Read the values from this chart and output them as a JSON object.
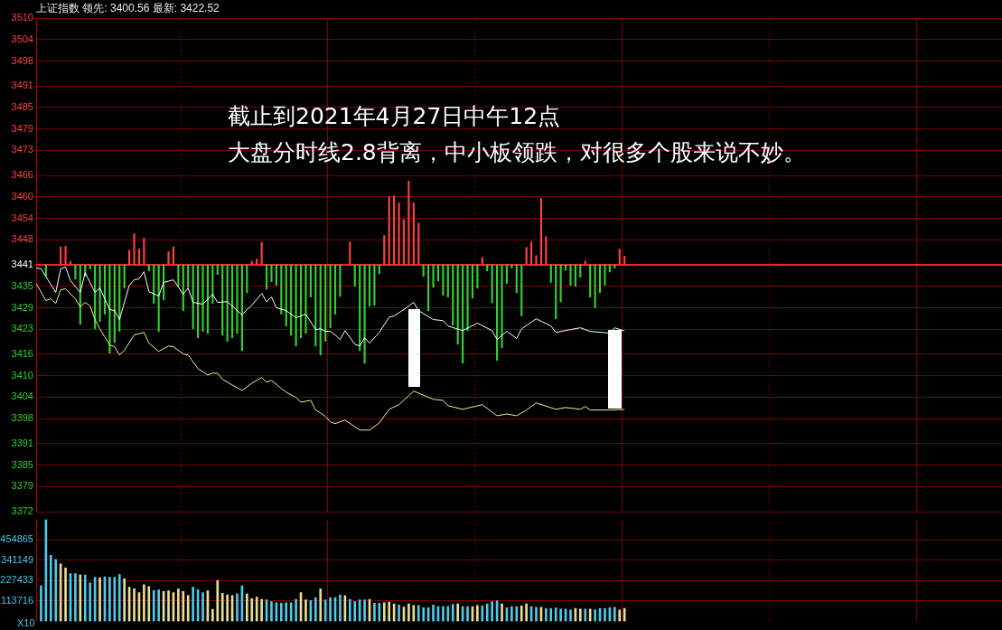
{
  "chart_data": [
    {
      "type": "line",
      "title": "上证指数 领先: 3400.56 最新: 3422.52",
      "annotations": [
        "截止到2021年4月27日中午12点",
        "大盘分时线2.8背离，中小板领跌，对很多个股来说不妙。"
      ],
      "categories": [
        null,
        null,
        null,
        null,
        null,
        null,
        null,
        null,
        null,
        null,
        null,
        null,
        null,
        null,
        null,
        null,
        null,
        null,
        null,
        null,
        null,
        null,
        null,
        null,
        null,
        null,
        null,
        null,
        null,
        null,
        null,
        null,
        null,
        null,
        null,
        null,
        null,
        null,
        null,
        null,
        null,
        null,
        null,
        null,
        null,
        null,
        null,
        null,
        null,
        null,
        null,
        null,
        null,
        null,
        null,
        null,
        null,
        null,
        null,
        null,
        null,
        null,
        null,
        null,
        null,
        null,
        null,
        null,
        null,
        null,
        null,
        null,
        null,
        null,
        null,
        null,
        null,
        null,
        null,
        null,
        null,
        null,
        null,
        null,
        null,
        null,
        null,
        null,
        null,
        null,
        null,
        null,
        null,
        null,
        null,
        null,
        null,
        null,
        null,
        null,
        null,
        null,
        null,
        null,
        null,
        null,
        null,
        null,
        null,
        null,
        null,
        null,
        null,
        null,
        null,
        null,
        null,
        null,
        null,
        null,
        null,
        null,
        null,
        null,
        null,
        null,
        null,
        null,
        null,
        null,
        null,
        null,
        null,
        null,
        null,
        null,
        null,
        null,
        null,
        null,
        null,
        null,
        null,
        null,
        null,
        null,
        null,
        null,
        null,
        null,
        null,
        null,
        null,
        null,
        null,
        null,
        null,
        null,
        null,
        null,
        null,
        null,
        null,
        null,
        null,
        null,
        null,
        null,
        null,
        null,
        null,
        null,
        null,
        null,
        null,
        null,
        null,
        null,
        null,
        null,
        null,
        null,
        null,
        null,
        null,
        null,
        null,
        null,
        null,
        null,
        null,
        null,
        null,
        null,
        null,
        null,
        null,
        null
      ],
      "ylim": [
        3372,
        3510
      ],
      "yticks": [
        3372,
        3379,
        3385,
        3391,
        3398,
        3404,
        3410,
        3416,
        3423,
        3429,
        3435,
        3441,
        3448,
        3454,
        3460,
        3466,
        3473,
        3479,
        3485,
        3491,
        3498,
        3504,
        3510
      ],
      "tick_labels": "y",
      "grid": true,
      "ref_lines": [
        {
          "axis": "y",
          "value": 3441,
          "color": "#ff2020"
        }
      ],
      "series": [
        {
          "type": "bar",
          "values": [
            null,
            null,
            -3.2,
            null,
            null,
            5.0,
            5.2,
            1.0,
            -4.0,
            -16.6,
            -3.2,
            -1.2,
            -17.9,
            -15.9,
            -13.8,
            -24.7,
            -21.7,
            -18.6,
            -6.5,
            4.1,
            8.7,
            4.4,
            7.5,
            -1.7,
            -10.8,
            -18.6,
            -9.8,
            3.7,
            5.0,
            -6.0,
            -12.8,
            -6.3,
            -17.9,
            -20.4,
            -18.6,
            -19.2,
            -10.8,
            -2.7,
            -19.7,
            -21.4,
            -20.4,
            -19.2,
            -24.0,
            -7.8,
            1.0,
            1.6,
            6.3,
            -6.8,
            -4.7,
            -5.7,
            -13.8,
            -17.1,
            -19.7,
            -22.7,
            -20.4,
            -19.2,
            -9.0,
            -22.7,
            -25.2,
            -21.4,
            -17.6,
            -13.8,
            -8.8,
            null,
            6.4,
            -6.0,
            -24.0,
            -27.5,
            -11.6,
            -11.3,
            -2.5,
            8.2,
            19.1,
            19.3,
            17.3,
            12.7,
            23.4,
            17.3,
            11.7,
            -3.2,
            -12.8,
            -6.3,
            -4.5,
            -8.5,
            -9.0,
            -16.9,
            -22.2,
            -27.5,
            -18.4,
            -9.3,
            -6.5,
            2.1,
            -1.7,
            -10.6,
            -26.7,
            -23.2,
            -5.2,
            -0.9,
            -7.8,
            -14.3,
            4.9,
            6.4,
            2.6,
            18.6,
            7.9,
            -4.9,
            -15.1,
            -10.3,
            -1.5,
            -5.7,
            -6.0,
            -3.5,
            1.1,
            -9.0,
            -12.0,
            -7.8,
            -5.7,
            -2.0,
            -0.9,
            4.4,
            2.4,
            null,
            null,
            null,
            null,
            null,
            null,
            null,
            null,
            null,
            null,
            null,
            null,
            null,
            null,
            null,
            null,
            null,
            null,
            null,
            null,
            null,
            null,
            null,
            null,
            null,
            null,
            null,
            null,
            null,
            null,
            null,
            null,
            null,
            null,
            null,
            null,
            null,
            null,
            null,
            null,
            null,
            null,
            null,
            null,
            null,
            null,
            null,
            null,
            null,
            null,
            null,
            null,
            null,
            null,
            null,
            null,
            null,
            null,
            null,
            null,
            null,
            null,
            null,
            null,
            null,
            null,
            null,
            null,
            null,
            null,
            null,
            null,
            null,
            null,
            null,
            null,
            null
          ],
          "colors": [
            null,
            null,
            "#30d030",
            null,
            null,
            "#ff4040",
            "#ff4040",
            "#ff4040",
            "#30d030",
            "#30d030",
            "#30d030",
            "#30d030",
            "#30d030",
            "#30d030",
            "#30d030",
            "#30d030",
            "#30d030",
            "#30d030",
            "#30d030",
            "#ff4040",
            "#ff4040",
            "#ff4040",
            "#ff4040",
            "#30d030",
            "#30d030",
            "#30d030",
            "#30d030",
            "#ff4040",
            "#ff4040",
            "#30d030",
            "#30d030",
            "#30d030",
            "#30d030",
            "#30d030",
            "#30d030",
            "#30d030",
            "#30d030",
            "#30d030",
            "#30d030",
            "#30d030",
            "#30d030",
            "#30d030",
            "#30d030",
            "#30d030",
            "#ff4040",
            "#ff4040",
            "#ff4040",
            "#30d030",
            "#30d030",
            "#30d030",
            "#30d030",
            "#30d030",
            "#30d030",
            "#30d030",
            "#30d030",
            "#30d030",
            "#30d030",
            "#30d030",
            "#30d030",
            "#30d030",
            "#30d030",
            "#30d030",
            "#30d030",
            null,
            "#ff4040",
            "#30d030",
            "#30d030",
            "#30d030",
            "#30d030",
            "#30d030",
            "#30d030",
            "#ff4040",
            "#ff4040",
            "#ff4040",
            "#ff4040",
            "#ff4040",
            "#ff4040",
            "#ff4040",
            "#ff4040",
            "#30d030",
            "#30d030",
            "#30d030",
            "#30d030",
            "#30d030",
            "#30d030",
            "#30d030",
            "#30d030",
            "#30d030",
            "#30d030",
            "#30d030",
            "#30d030",
            "#ff4040",
            "#30d030",
            "#30d030",
            "#30d030",
            "#30d030",
            "#30d030",
            "#30d030",
            "#30d030",
            "#30d030",
            "#ff4040",
            "#ff4040",
            "#ff4040",
            "#ff4040",
            "#ff4040",
            "#30d030",
            "#30d030",
            "#30d030",
            "#30d030",
            "#30d030",
            "#30d030",
            "#30d030",
            "#ff4040",
            "#30d030",
            "#30d030",
            "#30d030",
            "#30d030",
            "#30d030",
            "#30d030",
            "#ff4040",
            "#ff4040",
            null,
            null,
            null,
            null,
            null,
            null,
            null,
            null,
            null,
            null,
            null,
            null,
            null,
            null,
            null,
            null,
            null,
            null,
            null,
            null,
            null,
            null,
            null,
            null,
            null,
            null,
            null,
            null,
            null,
            null,
            null,
            null,
            null,
            null,
            null,
            null,
            null,
            null,
            null,
            null,
            null,
            null,
            null,
            null,
            null,
            null,
            null,
            null,
            null,
            null,
            null,
            null,
            null,
            null,
            null,
            null,
            null,
            null,
            null,
            null,
            null,
            null,
            null,
            null,
            null,
            null,
            null,
            null,
            null,
            null,
            null,
            null,
            null,
            null,
            null,
            null,
            null
          ],
          "base": [
            null,
            null,
            3441,
            null,
            null,
            3441,
            3441,
            3441,
            3441,
            3441,
            3441,
            3441,
            3441,
            3441,
            3441,
            3441,
            3441,
            3441,
            3441,
            3441,
            3441,
            3441,
            3441,
            3441,
            3441,
            3441,
            3441,
            3441,
            3441,
            3441,
            3441,
            3441,
            3441,
            3441,
            3441,
            3441,
            3441,
            3441,
            3441,
            3441,
            3441,
            3441,
            3441,
            3441,
            3441,
            3441,
            3441,
            3441,
            3441,
            3441,
            3441,
            3441,
            3441,
            3441,
            3441,
            3441,
            3441,
            3441,
            3441,
            3441,
            3441,
            3441,
            3441,
            null,
            3441,
            3441,
            3441,
            3441,
            3441,
            3441,
            3441,
            3441,
            3441,
            3441,
            3441,
            3441,
            3441,
            3441,
            3441,
            3441,
            3441,
            3441,
            3441,
            3441,
            3441,
            3441,
            3441,
            3441,
            3441,
            3441,
            3441,
            3441,
            3441,
            3441,
            3441,
            3441,
            3441,
            3441,
            3441,
            3441,
            3441,
            3441,
            3441,
            3441,
            3441,
            3441,
            3441,
            3441,
            3441,
            3441,
            3441,
            3441,
            3441,
            3441,
            3441,
            3441,
            3441,
            3441,
            3441,
            3441,
            3441,
            null,
            null,
            null,
            null,
            null,
            null,
            null,
            null,
            null,
            null,
            null,
            null,
            null,
            null,
            null,
            null,
            null,
            null,
            null,
            null,
            null,
            null,
            null,
            null,
            null,
            null,
            null,
            null,
            null,
            null,
            null,
            null,
            null,
            null,
            null,
            null,
            null,
            null,
            null,
            null,
            null,
            null,
            null,
            null,
            null,
            null,
            null,
            null,
            null,
            null,
            null,
            null,
            null,
            null,
            null,
            null,
            null,
            null,
            null,
            null,
            null,
            null,
            null,
            null,
            null,
            null,
            null,
            null,
            null,
            null,
            null,
            null,
            null,
            null,
            null,
            null,
            null
          ]
        },
        {
          "type": "line",
          "color": "#ffffff",
          "values": [
            3440.1,
            3439.9,
            null,
            null,
            3433.3,
            3439.9,
            3440.4,
            3436.6,
            null,
            3433.3,
            3438.8,
            null,
            3433.3,
            3434.5,
            null,
            3428.5,
            3428.2,
            3425.7,
            null,
            3435.3,
            3436.8,
            3437.1,
            3439.1,
            3433.5,
            null,
            3432.3,
            3436.1,
            null,
            3436.8,
            null,
            3432.8,
            3434.5,
            3430.5,
            null,
            3430.0,
            null,
            3432.8,
            3430.5,
            null,
            3430.7,
            null,
            null,
            3427.0,
            3428.5,
            3429.7,
            null,
            3433.0,
            3430.7,
            3432.0,
            3429.0,
            null,
            3428.2,
            null,
            3426.2,
            3426.7,
            3427.2,
            null,
            3422.9,
            3423.1,
            3422.4,
            3422.4,
            3421.4,
            3420.1,
            3422.6,
            null,
            3418.8,
            3418.3,
            3420.6,
            3419.1,
            null,
            3422.1,
            null,
            3426.4,
            3426.7,
            null,
            3428.5,
            null,
            3430.5,
            3428.2,
            null,
            null,
            3425.7,
            null,
            3425.4,
            3423.9,
            null,
            null,
            3422.6,
            null,
            null,
            3424.7,
            null,
            null,
            3422.6,
            3420.1,
            null,
            3422.4,
            null,
            3420.4,
            3423.1,
            null,
            null,
            3425.9,
            null,
            null,
            3423.9,
            3422.1,
            null,
            null,
            3422.9,
            null,
            3423.4,
            null,
            3422.4,
            null,
            null,
            null,
            3421.9,
            3423.4,
            null,
            3422.52,
            null,
            null,
            null,
            null,
            null,
            null,
            null,
            null,
            null,
            null,
            null,
            null,
            null,
            null,
            null,
            null,
            null,
            null,
            null,
            null,
            null,
            null,
            null,
            null,
            null,
            null,
            null,
            null,
            null,
            null,
            null,
            null,
            null,
            null,
            null,
            null,
            null,
            null,
            null,
            null,
            null,
            null,
            null,
            null,
            null,
            null,
            null,
            null,
            null,
            null,
            null,
            null,
            null,
            null,
            null,
            null,
            null,
            null,
            null,
            null,
            null,
            null,
            null,
            null,
            null,
            null,
            null,
            null,
            null,
            null,
            null,
            null,
            null,
            null,
            null,
            null,
            null
          ]
        },
        {
          "type": "line",
          "color": "#f0f0a0",
          "values": [
            3435.8,
            null,
            3431.0,
            3431.5,
            3430.2,
            3434.0,
            3434.3,
            null,
            3431.5,
            3429.2,
            3430.5,
            3429.5,
            3425.7,
            3423.1,
            null,
            3418.6,
            3418.1,
            3415.8,
            3417.1,
            null,
            3421.4,
            null,
            3422.1,
            3419.1,
            null,
            3416.8,
            null,
            3418.3,
            3418.1,
            null,
            3416.1,
            3415.8,
            null,
            3412.0,
            null,
            3410.2,
            3410.7,
            3410.7,
            3409.0,
            null,
            3407.4,
            null,
            3405.9,
            null,
            3407.9,
            null,
            3409.5,
            3408.2,
            3408.7,
            null,
            3406.4,
            3405.4,
            null,
            3403.9,
            3402.6,
            null,
            3403.1,
            3400.4,
            3399.6,
            3398.6,
            3397.1,
            3396.6,
            null,
            3397.6,
            null,
            null,
            3394.8,
            null,
            3394.8,
            null,
            3396.8,
            null,
            3400.6,
            null,
            3401.9,
            null,
            3404.4,
            3405.7,
            null,
            null,
            null,
            3403.4,
            null,
            3403.1,
            3401.6,
            null,
            null,
            3400.6,
            null,
            null,
            null,
            3401.9,
            null,
            null,
            3398.8,
            null,
            3399.3,
            null,
            3398.8,
            null,
            3400.4,
            null,
            3402.4,
            null,
            null,
            null,
            3400.6,
            null,
            3401.1,
            null,
            null,
            3400.6,
            3401.4,
            3400.4,
            null,
            null,
            null,
            3400.4,
            null,
            null,
            3400.56,
            null,
            null,
            null,
            null,
            null,
            null,
            null,
            null,
            null,
            null,
            null,
            null,
            null,
            null,
            null,
            null,
            null,
            null,
            null,
            null,
            null,
            null,
            null,
            null,
            null,
            null,
            null,
            null,
            null,
            null,
            null,
            null,
            null,
            null,
            null,
            null,
            null,
            null,
            null,
            null,
            null,
            null,
            null,
            null,
            null,
            null,
            null,
            null,
            null,
            null,
            null,
            null,
            null,
            null,
            null,
            null,
            null,
            null,
            null,
            null,
            null,
            null,
            null,
            null,
            null,
            null,
            null,
            null,
            null,
            null,
            null,
            null,
            null,
            null,
            null,
            null,
            null
          ]
        }
      ]
    },
    {
      "type": "bar",
      "ylabel": "X10",
      "categories": [
        null,
        null,
        null,
        null,
        null,
        null,
        null,
        null,
        null,
        null,
        null,
        null,
        null,
        null,
        null,
        null,
        null,
        null,
        null,
        null,
        null,
        null,
        null,
        null,
        null,
        null,
        null,
        null,
        null,
        null,
        null,
        null,
        null,
        null,
        null,
        null,
        null,
        null,
        null,
        null,
        null,
        null,
        null,
        null,
        null,
        null,
        null,
        null,
        null,
        null,
        null,
        null,
        null,
        null,
        null,
        null,
        null,
        null,
        null,
        null,
        null,
        null,
        null,
        null,
        null,
        null,
        null,
        null,
        null,
        null,
        null,
        null,
        null,
        null,
        null,
        null,
        null,
        null,
        null,
        null,
        null,
        null,
        null,
        null,
        null,
        null,
        null,
        null,
        null,
        null,
        null,
        null,
        null,
        null,
        null,
        null,
        null,
        null,
        null,
        null,
        null,
        null,
        null,
        null,
        null,
        null,
        null,
        null,
        null,
        null,
        null,
        null,
        null,
        null,
        null,
        null,
        null,
        null,
        null,
        null,
        null,
        null,
        null,
        null,
        null,
        null,
        null,
        null,
        null,
        null,
        null,
        null,
        null,
        null,
        null,
        null,
        null,
        null,
        null,
        null,
        null,
        null,
        null,
        null,
        null,
        null,
        null,
        null,
        null,
        null,
        null,
        null,
        null,
        null,
        null,
        null,
        null,
        null,
        null,
        null,
        null,
        null,
        null,
        null,
        null,
        null,
        null,
        null,
        null,
        null,
        null,
        null,
        null,
        null,
        null,
        null,
        null,
        null,
        null,
        null,
        null,
        null,
        null,
        null,
        null,
        null,
        null,
        null,
        null,
        null,
        null,
        null,
        null,
        null,
        null,
        null,
        null,
        null
      ],
      "ylim": [
        0,
        568581
      ],
      "yticks": [
        113716,
        227433,
        341149,
        454865
      ],
      "tick_labels": "y",
      "grid": true,
      "values": [
        null,
        198000,
        567000,
        368000,
        345000,
        321000,
        298000,
        266000,
        266000,
        259000,
        259000,
        214000,
        246000,
        242000,
        249000,
        246000,
        246000,
        261000,
        238000,
        191000,
        182000,
        161000,
        204000,
        195000,
        172000,
        176000,
        167000,
        170000,
        161000,
        180000,
        167000,
        144000,
        191000,
        176000,
        161000,
        170000,
        67000,
        227000,
        157000,
        148000,
        144000,
        153000,
        198000,
        153000,
        127000,
        135000,
        123000,
        120000,
        110000,
        104000,
        101000,
        104000,
        104000,
        123000,
        161000,
        120000,
        116000,
        133000,
        180000,
        120000,
        133000,
        133000,
        146000,
        144000,
        123000,
        110000,
        120000,
        120000,
        123000,
        101000,
        101000,
        104000,
        108000,
        97000,
        91000,
        80000,
        97000,
        88000,
        89000,
        76000,
        76000,
        91000,
        82000,
        82000,
        84000,
        95000,
        97000,
        82000,
        82000,
        82000,
        88000,
        86000,
        97000,
        110000,
        114000,
        97000,
        76000,
        82000,
        82000,
        86000,
        97000,
        82000,
        78000,
        78000,
        72000,
        72000,
        75000,
        69000,
        69000,
        63000,
        72000,
        69000,
        69000,
        69000,
        65000,
        72000,
        72000,
        76000,
        78000,
        63000,
        72000,
        null,
        null,
        null,
        null,
        null,
        null,
        null,
        null,
        null,
        null,
        null,
        null,
        null,
        null,
        null,
        null,
        null,
        null,
        null,
        null,
        null,
        null,
        null,
        null,
        null,
        null,
        null,
        null,
        null,
        null,
        null,
        null,
        null,
        null,
        null,
        null,
        null,
        null,
        null,
        null,
        null,
        null,
        null,
        null,
        null,
        null,
        null,
        null,
        null,
        null,
        null,
        null,
        null,
        null,
        null,
        null,
        null,
        null,
        null,
        null,
        null,
        null,
        null,
        null,
        null,
        null,
        null,
        null,
        null,
        null,
        null,
        null,
        null,
        null,
        null,
        null,
        null
      ],
      "colors": [
        null,
        "#50c8e8",
        "#50c8e8",
        "#50c8e8",
        "#50c8e8",
        "#e8dc90",
        "#e8dc90",
        "#50c8e8",
        "#50c8e8",
        "#e8dc90",
        "#50c8e8",
        "#50c8e8",
        "#50c8e8",
        "#e8dc90",
        "#50c8e8",
        "#50c8e8",
        "#50c8e8",
        "#50c8e8",
        "#e8dc90",
        "#e8dc90",
        "#e8dc90",
        "#e8dc90",
        "#e8dc90",
        "#e8dc90",
        "#50c8e8",
        "#50c8e8",
        "#e8dc90",
        "#e8dc90",
        "#e8dc90",
        "#e8dc90",
        "#e8dc90",
        "#e8dc90",
        "#50c8e8",
        "#50c8e8",
        "#50c8e8",
        "#e8dc90",
        "#e8dc90",
        "#e8dc90",
        "#e8dc90",
        "#e8dc90",
        "#e8dc90",
        "#50c8e8",
        "#50c8e8",
        "#e8dc90",
        "#e8dc90",
        "#e8dc90",
        "#e8dc90",
        "#50c8e8",
        "#50c8e8",
        "#50c8e8",
        "#50c8e8",
        "#50c8e8",
        "#50c8e8",
        "#50c8e8",
        "#e8dc90",
        "#e8dc90",
        "#50c8e8",
        "#50c8e8",
        "#e8dc90",
        "#50c8e8",
        "#50c8e8",
        "#50c8e8",
        "#50c8e8",
        "#e8dc90",
        "#50c8e8",
        "#50c8e8",
        "#50c8e8",
        "#50c8e8",
        "#e8dc90",
        "#50c8e8",
        "#50c8e8",
        "#e8dc90",
        "#e8dc90",
        "#e8dc90",
        "#50c8e8",
        "#e8dc90",
        "#e8dc90",
        "#e8dc90",
        "#50c8e8",
        "#50c8e8",
        "#50c8e8",
        "#50c8e8",
        "#50c8e8",
        "#50c8e8",
        "#50c8e8",
        "#50c8e8",
        "#e8dc90",
        "#50c8e8",
        "#50c8e8",
        "#e8dc90",
        "#e8dc90",
        "#50c8e8",
        "#50c8e8",
        "#50c8e8",
        "#50c8e8",
        "#e8dc90",
        "#50c8e8",
        "#50c8e8",
        "#50c8e8",
        "#e8dc90",
        "#e8dc90",
        "#50c8e8",
        "#50c8e8",
        "#e8dc90",
        "#50c8e8",
        "#50c8e8",
        "#50c8e8",
        "#50c8e8",
        "#50c8e8",
        "#50c8e8",
        "#e8dc90",
        "#e8dc90",
        "#50c8e8",
        "#e8dc90",
        "#50c8e8",
        "#50c8e8",
        "#50c8e8",
        "#50c8e8",
        "#50c8e8",
        "#e8dc90",
        "#e8dc90",
        null,
        null,
        null,
        null,
        null,
        null,
        null,
        null,
        null,
        null,
        null,
        null,
        null,
        null,
        null,
        null,
        null,
        null,
        null,
        null,
        null,
        null,
        null,
        null,
        null,
        null,
        null,
        null,
        null,
        null,
        null,
        null,
        null,
        null,
        null,
        null,
        null,
        null,
        null,
        null,
        null,
        null,
        null,
        null,
        null,
        null,
        null,
        null,
        null,
        null,
        null,
        null,
        null,
        null,
        null,
        null,
        null,
        null,
        null,
        null,
        null,
        null,
        null,
        null,
        null,
        null,
        null,
        null,
        null,
        null,
        null,
        null,
        null,
        null,
        null,
        null,
        null
      ]
    }
  ]
}
